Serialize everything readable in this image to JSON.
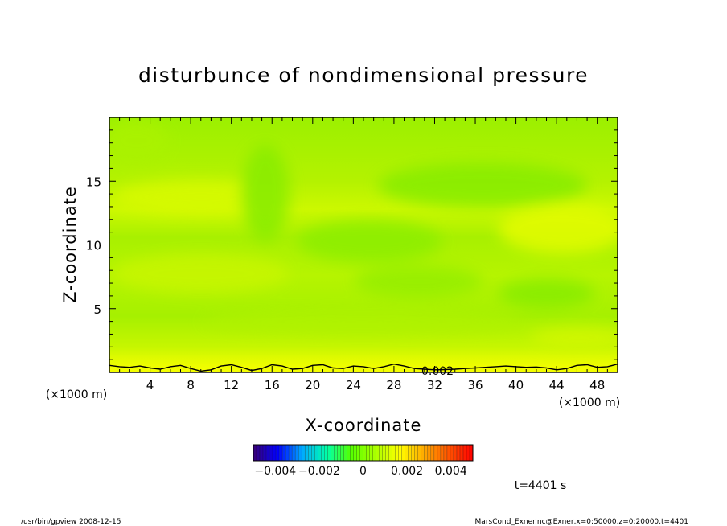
{
  "chart_data": {
    "type": "heatmap",
    "title": "disturbunce of nondimensional pressure",
    "xlabel": "X-coordinate",
    "ylabel": "Z-coordinate",
    "x_unit": "(×1000 m)",
    "y_unit": "(×1000 m)",
    "xlim": [
      0,
      50
    ],
    "ylim": [
      0,
      20
    ],
    "x_ticks": [
      4,
      8,
      12,
      16,
      20,
      24,
      28,
      32,
      36,
      40,
      44,
      48
    ],
    "y_ticks": [
      5,
      10,
      15
    ],
    "colorbar": {
      "range": [
        -0.005,
        0.005
      ],
      "tick_values": [
        -0.004,
        -0.002,
        0,
        0.002,
        0.004
      ],
      "tick_labels": [
        "−0.004",
        "−0.002",
        "0",
        "0.002",
        "0.004"
      ],
      "colors": [
        "#3a0078",
        "#0000ff",
        "#00aaff",
        "#00ffaa",
        "#55ff00",
        "#aaff00",
        "#ffff00",
        "#ffaa00",
        "#ff5500",
        "#ff0000"
      ]
    },
    "field_colors": {
      "low": "#7ff000",
      "mid": "#a6f000",
      "high": "#d6fa00",
      "surface": "#f2ff00"
    },
    "contour": {
      "level": 0.002,
      "label": "0.002",
      "x": [
        0,
        1,
        2,
        3,
        4,
        5,
        6,
        7,
        8,
        9,
        10,
        11,
        12,
        13,
        14,
        15,
        16,
        17,
        18,
        19,
        20,
        21,
        22,
        23,
        24,
        25,
        26,
        27,
        28,
        29,
        30,
        31,
        32,
        33,
        34,
        35,
        36,
        37,
        38,
        39,
        40,
        41,
        42,
        43,
        44,
        45,
        46,
        47,
        48,
        49,
        50
      ],
      "z": [
        0.55,
        0.45,
        0.4,
        0.5,
        0.35,
        0.25,
        0.45,
        0.55,
        0.3,
        0.1,
        0.2,
        0.5,
        0.6,
        0.4,
        0.15,
        0.3,
        0.6,
        0.5,
        0.25,
        0.3,
        0.55,
        0.6,
        0.35,
        0.3,
        0.5,
        0.45,
        0.3,
        0.45,
        0.65,
        0.5,
        0.3,
        0.25,
        0.2,
        0.22,
        0.25,
        0.3,
        0.35,
        0.4,
        0.45,
        0.5,
        0.45,
        0.4,
        0.42,
        0.35,
        0.2,
        0.3,
        0.55,
        0.6,
        0.4,
        0.45,
        0.65
      ]
    }
  },
  "time_label": "t=4401 s",
  "footer": {
    "left": "/usr/bin/gpview   2008-12-15",
    "right": "MarsCond_Exner.nc@Exner,x=0:50000,z=0:20000,t=4401"
  }
}
